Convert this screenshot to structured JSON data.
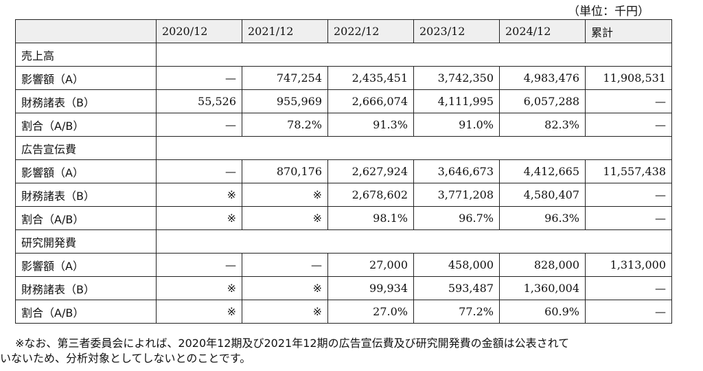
{
  "unit_label": "（単位：千円）",
  "columns": [
    "",
    "2020/12",
    "2021/12",
    "2022/12",
    "2023/12",
    "2024/12",
    "累計"
  ],
  "sections": [
    {
      "title": "売上高",
      "rows": [
        {
          "label": "影響額（A）",
          "values": [
            "—",
            "747,254",
            "2,435,451",
            "3,742,350",
            "4,983,476",
            "11,908,531"
          ]
        },
        {
          "label": "財務諸表（B）",
          "values": [
            "55,526",
            "955,969",
            "2,666,074",
            "4,111,995",
            "6,057,288",
            "—"
          ]
        },
        {
          "label": "割合（A/B）",
          "values": [
            "—",
            "78.2%",
            "91.3%",
            "91.0%",
            "82.3%",
            "—"
          ]
        }
      ]
    },
    {
      "title": "広告宣伝費",
      "rows": [
        {
          "label": "影響額（A）",
          "values": [
            "—",
            "870,176",
            "2,627,924",
            "3,646,673",
            "4,412,665",
            "11,557,438"
          ]
        },
        {
          "label": "財務諸表（B）",
          "values": [
            "※",
            "※",
            "2,678,602",
            "3,771,208",
            "4,580,407",
            "—"
          ]
        },
        {
          "label": "割合（A/B）",
          "values": [
            "※",
            "※",
            "98.1%",
            "96.7%",
            "96.3%",
            "—"
          ]
        }
      ]
    },
    {
      "title": "研究開発費",
      "rows": [
        {
          "label": "影響額（A）",
          "values": [
            "—",
            "—",
            "27,000",
            "458,000",
            "828,000",
            "1,313,000"
          ]
        },
        {
          "label": "財務諸表（B）",
          "values": [
            "※",
            "※",
            "99,934",
            "593,487",
            "1,360,004",
            "—"
          ]
        },
        {
          "label": "割合（A/B）",
          "values": [
            "※",
            "※",
            "27.0%",
            "77.2%",
            "60.9%",
            "—"
          ]
        }
      ]
    }
  ],
  "note_line1": "※なお、第三者委員会によれば、2020年12期及び2021年12期の広告宣伝費及び研究開発費の金額は公表されて",
  "note_line2": "いないため、分析対象としてしないとのことです。"
}
